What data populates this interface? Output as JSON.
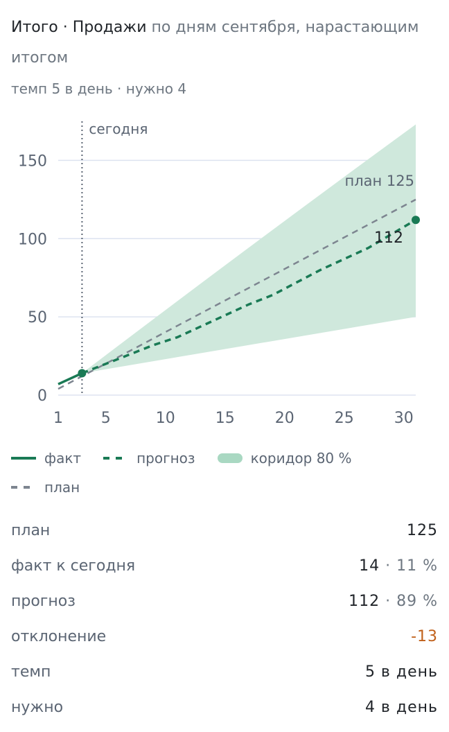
{
  "header": {
    "title_strong": "Итого · Продажи",
    "title_muted": "по дням сентября, нарастающим итогом",
    "subtitle": "темп 5 в день · нужно 4"
  },
  "chart_data": {
    "type": "line",
    "x_ticks": [
      1,
      5,
      10,
      15,
      20,
      25,
      30
    ],
    "y_ticks": [
      0,
      50,
      100,
      150
    ],
    "xlim": [
      1,
      31
    ],
    "ylim": [
      0,
      175
    ],
    "today_label": "сегодня",
    "today_x": 3,
    "plan_label": "план 125",
    "forecast_label": "112",
    "series": [
      {
        "name": "факт",
        "x": [
          1,
          3
        ],
        "values": [
          7,
          14
        ]
      },
      {
        "name": "прогноз",
        "x": [
          3,
          5,
          7,
          9,
          11,
          13,
          15,
          17,
          19,
          21,
          23,
          25,
          27,
          29,
          31
        ],
        "values": [
          14,
          20,
          26,
          32,
          37,
          44,
          51,
          58,
          64,
          72,
          80,
          87,
          94,
          103,
          112
        ]
      },
      {
        "name": "план",
        "x": [
          1,
          31
        ],
        "values": [
          4,
          125
        ]
      },
      {
        "name": "коридор 80 %",
        "x": [
          3,
          31
        ],
        "lower": [
          14,
          50
        ],
        "upper": [
          14,
          173
        ]
      }
    ],
    "grid": true,
    "colors": {
      "fact": "#1a7a55",
      "forecast": "#1a7a55",
      "plan": "#7d8590",
      "band": "#cfe8dc",
      "grid": "#dde3f0"
    }
  },
  "legend": {
    "fact": "факт",
    "forecast": "прогноз",
    "band": "коридор 80 %",
    "plan": "план"
  },
  "stats": [
    {
      "label": "план",
      "value": "125",
      "extra": "",
      "negative": false
    },
    {
      "label": "факт к сегодня",
      "value": "14",
      "extra": " · 11 %",
      "negative": false
    },
    {
      "label": "прогноз",
      "value": "112",
      "extra": " · 89 %",
      "negative": false
    },
    {
      "label": "отклонение",
      "value": "-13",
      "extra": "",
      "negative": true
    },
    {
      "label": "темп",
      "value": "5",
      "extra": " в день",
      "negative": false
    },
    {
      "label": "нужно",
      "value": "4",
      "extra": " в день",
      "negative": false
    }
  ]
}
